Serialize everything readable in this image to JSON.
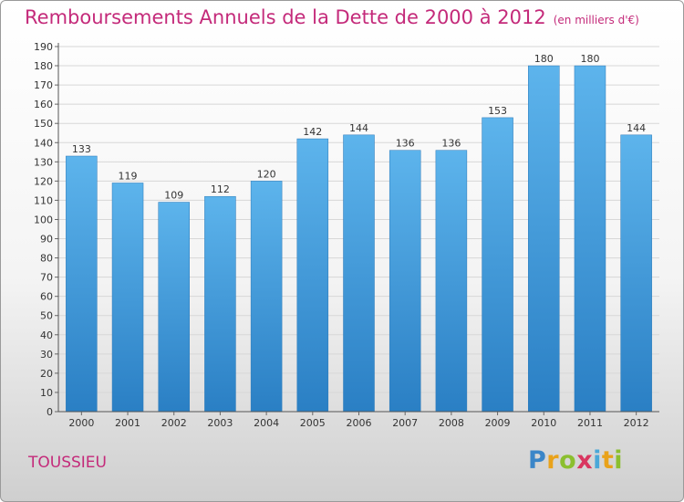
{
  "title": "Remboursements Annuels de la Dette de 2000 à 2012",
  "subtitle": "(en milliers d'€)",
  "commune": "TOUSSIEU",
  "logo": "Proxiti",
  "colors": {
    "bar": "#3d97dc",
    "bar_light": "#5bb2ea",
    "title": "#c42a7a",
    "grid": "#d7d7d7"
  },
  "chart_data": {
    "type": "bar",
    "title": "Remboursements Annuels de la Dette de 2000 à 2012",
    "xlabel": "",
    "ylabel": "",
    "categories": [
      "2000",
      "2001",
      "2002",
      "2003",
      "2004",
      "2005",
      "2006",
      "2007",
      "2008",
      "2009",
      "2010",
      "2011",
      "2012"
    ],
    "values": [
      133,
      119,
      109,
      112,
      120,
      142,
      144,
      136,
      136,
      153,
      180,
      180,
      144
    ],
    "ylim": [
      0,
      190
    ],
    "ytick_step": 10,
    "grid": true
  }
}
